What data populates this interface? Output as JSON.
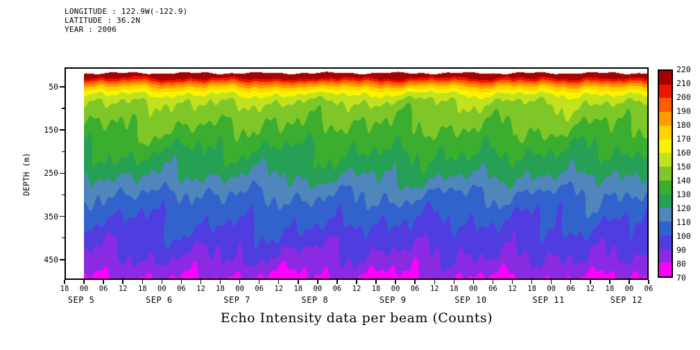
{
  "header": {
    "lines": [
      "LONGITUDE : 122.9W(-122.9)",
      "LATITUDE : 36.2N",
      "YEAR : 2006"
    ]
  },
  "title": "Echo Intensity data per beam (Counts)",
  "axes": {
    "y_label": "DEPTH (m)",
    "y_major_ticks": [
      50,
      150,
      250,
      350,
      450
    ],
    "y_minor_ticks": [
      100,
      200,
      300,
      400
    ],
    "hour_labels": [
      "18",
      "00",
      "06",
      "12",
      "18",
      "00",
      "06",
      "12",
      "18",
      "00",
      "06",
      "12",
      "18",
      "00",
      "06",
      "12",
      "18",
      "00",
      "06",
      "12",
      "18",
      "00",
      "06",
      "12",
      "18",
      "00",
      "06",
      "12",
      "18",
      "00",
      "06"
    ],
    "date_labels": [
      "SEP 5",
      "SEP 6",
      "SEP 7",
      "SEP 8",
      "SEP 9",
      "SEP 10",
      "SEP 11",
      "SEP 12"
    ],
    "date_hour_index": [
      1,
      5,
      9,
      13,
      17,
      21,
      25,
      29
    ]
  },
  "colorbar": {
    "levels": [
      70,
      80,
      90,
      100,
      110,
      120,
      130,
      140,
      150,
      160,
      170,
      180,
      190,
      200,
      210,
      220
    ]
  },
  "chart_data": {
    "type": "heatmap",
    "subtype": "time-depth filled contour",
    "title": "Echo Intensity data per beam (Counts)",
    "xlabel": "Time, 6-hourly ticks from SEP 4 18:00 to SEP 12 06:00, year 2006",
    "ylabel": "DEPTH (m)",
    "value_units": "Counts",
    "levels": [
      70,
      80,
      90,
      100,
      110,
      120,
      130,
      140,
      150,
      160,
      170,
      180,
      190,
      200,
      210,
      220
    ],
    "palette": [
      "#ff00ff",
      "#8a2be2",
      "#4f3de0",
      "#3263cd",
      "#4f86bb",
      "#25a055",
      "#3bad2f",
      "#7fc728",
      "#c2e11e",
      "#f8f400",
      "#ffd200",
      "#ff9c00",
      "#ff5e00",
      "#ee1500",
      "#a80000"
    ],
    "depth_range_m": [
      5,
      497
    ],
    "data_start": "SEP 5 00:00",
    "data_end": "SEP 12 06:00",
    "data_hours_span": 174,
    "mean_profile": {
      "depth_m": [
        18,
        27,
        35,
        43,
        52,
        64,
        80,
        96,
        120,
        160,
        200,
        240,
        268,
        300,
        340,
        390,
        438,
        468,
        497
      ],
      "counts": [
        226,
        215,
        202,
        188,
        176,
        162,
        152,
        147,
        143,
        137,
        130,
        124,
        118,
        110,
        104,
        97,
        90,
        85,
        78
      ]
    }
  }
}
